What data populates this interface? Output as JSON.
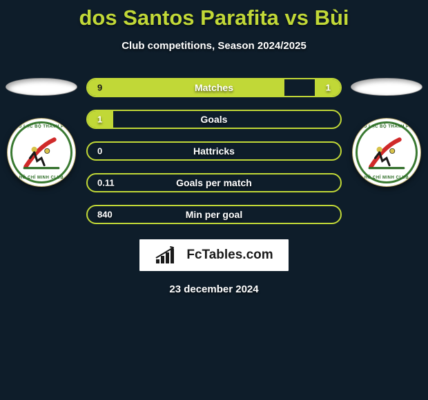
{
  "title": "dos Santos Parafita vs Bùi",
  "subtitle": "Club competitions, Season 2024/2025",
  "date": "23 december 2024",
  "branding_text": "FcTables.com",
  "colors": {
    "accent": "#c1d837",
    "background": "#0e1d2a",
    "text": "#ffffff",
    "dark_text": "#1a1a1a",
    "badge_border": "#3a7a32"
  },
  "player_left": {
    "club_top_text": "CÂU LẠC BỘ THÀNH PHỐ",
    "club_bottom_text": "HỒ CHÍ MINH CLUB"
  },
  "player_right": {
    "club_top_text": "CÂU LẠC BỘ THÀNH PHỐ",
    "club_bottom_text": "HỒ CHÍ MINH CLUB"
  },
  "stats": [
    {
      "label": "Matches",
      "left_value": "9",
      "right_value": "1",
      "left_fill_pct": 78,
      "right_fill_pct": 10,
      "left_text_dark": true,
      "right_text_dark": false
    },
    {
      "label": "Goals",
      "left_value": "1",
      "right_value": "",
      "left_fill_pct": 10,
      "right_fill_pct": 0,
      "left_text_dark": false,
      "right_text_dark": false
    },
    {
      "label": "Hattricks",
      "left_value": "0",
      "right_value": "",
      "left_fill_pct": 0,
      "right_fill_pct": 0,
      "left_text_dark": false,
      "right_text_dark": false
    },
    {
      "label": "Goals per match",
      "left_value": "0.11",
      "right_value": "",
      "left_fill_pct": 0,
      "right_fill_pct": 0,
      "left_text_dark": false,
      "right_text_dark": false
    },
    {
      "label": "Min per goal",
      "left_value": "840",
      "right_value": "",
      "left_fill_pct": 0,
      "right_fill_pct": 0,
      "left_text_dark": false,
      "right_text_dark": false
    }
  ]
}
